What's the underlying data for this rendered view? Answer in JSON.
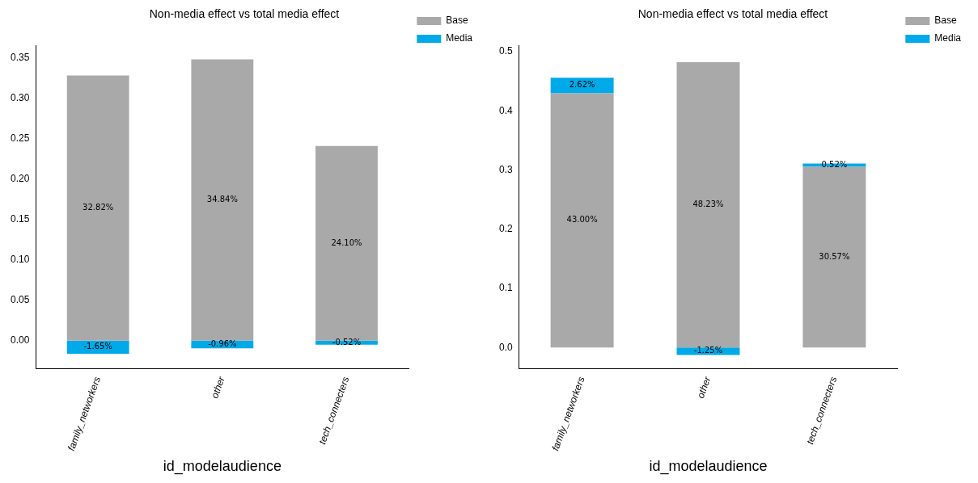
{
  "chart_data": [
    {
      "type": "bar",
      "title": "Non-media effect vs total media effect",
      "xlabel": "id_modelaudience",
      "categories": [
        "family_networkers",
        "other",
        "tech_connecters"
      ],
      "stacked": true,
      "legend": "top right",
      "grid": false,
      "ylim": [
        -0.035,
        0.365
      ],
      "yticks": [
        {
          "value": 0,
          "label": "0.00"
        },
        0.05,
        {
          "value": 0.1,
          "label": "0.10"
        },
        0.15,
        {
          "value": 0.2,
          "label": "0.20"
        },
        0.25,
        {
          "value": 0.3,
          "label": "0.30"
        },
        0.35
      ],
      "series": [
        {
          "name": "Base",
          "color": "#a9a9a9",
          "values": [
            0.3282,
            0.3484,
            0.241
          ],
          "value_labels": [
            "32.82%",
            "34.84%",
            "24.10%"
          ]
        },
        {
          "name": "Media",
          "color": "#00a9e8",
          "values": [
            -0.0165,
            -0.0096,
            -0.0052
          ],
          "value_labels": [
            "-1.65%",
            "-0.96%",
            "-0.52%"
          ]
        }
      ]
    },
    {
      "type": "bar",
      "title": "Non-media effect vs total media effect",
      "xlabel": "id_modelaudience",
      "categories": [
        "family_networkers",
        "other",
        "tech_connecters"
      ],
      "stacked": true,
      "legend": "top right",
      "grid": false,
      "ylim": [
        -0.036,
        0.51
      ],
      "yticks": [
        {
          "value": 0,
          "label": "0.0"
        },
        0.1,
        0.2,
        0.3,
        0.4,
        0.5
      ],
      "series": [
        {
          "name": "Base",
          "color": "#a9a9a9",
          "values": [
            0.43,
            0.4823,
            0.3057
          ],
          "value_labels": [
            "43.00%",
            "48.23%",
            "30.57%"
          ]
        },
        {
          "name": "Media",
          "color": "#00a9e8",
          "values": [
            0.0262,
            -0.0125,
            0.0052
          ],
          "value_labels": [
            "2.62%",
            "-1.25%",
            "0.52%"
          ]
        }
      ]
    }
  ]
}
